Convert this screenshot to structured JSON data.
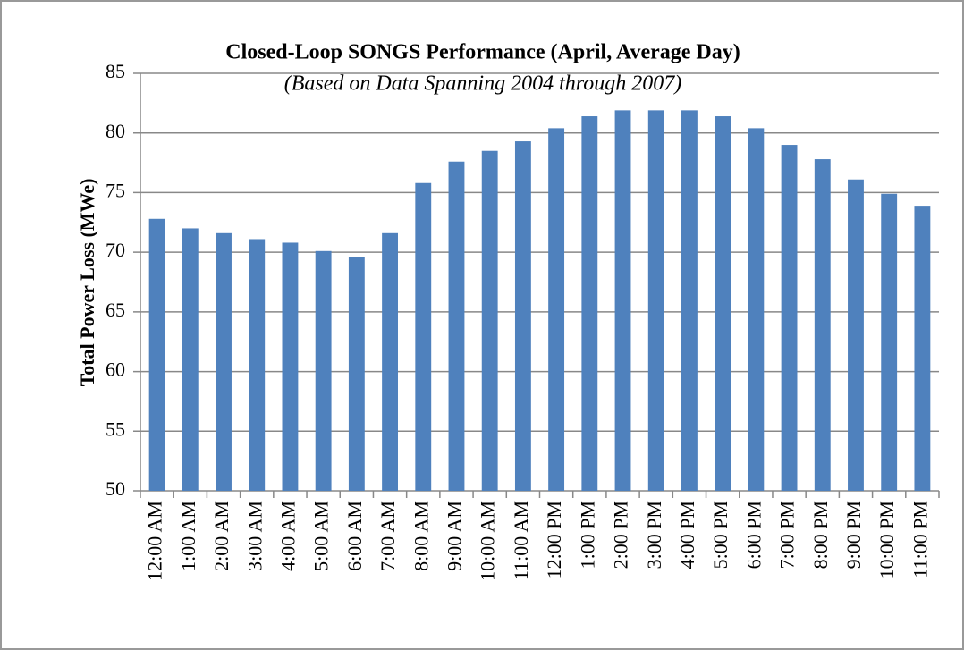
{
  "chart_data": {
    "type": "bar",
    "title": "Closed-Loop SONGS Performance  (April, Average Day)",
    "subtitle": "(Based on Data Spanning 2004 through 2007)",
    "y_label": "Total Power Loss (MWe)",
    "categories": [
      "12:00 AM",
      "1:00 AM",
      "2:00 AM",
      "3:00 AM",
      "4:00 AM",
      "5:00 AM",
      "6:00 AM",
      "7:00 AM",
      "8:00 AM",
      "9:00 AM",
      "10:00 AM",
      "11:00 AM",
      "12:00 PM",
      "1:00 PM",
      "2:00 PM",
      "3:00 PM",
      "4:00 PM",
      "5:00 PM",
      "6:00 PM",
      "7:00 PM",
      "8:00 PM",
      "9:00 PM",
      "10:00 PM",
      "11:00 PM"
    ],
    "values": [
      72.8,
      72.0,
      71.6,
      71.1,
      70.8,
      70.1,
      69.6,
      71.6,
      75.8,
      77.6,
      78.5,
      79.3,
      80.4,
      81.4,
      81.9,
      81.9,
      81.9,
      81.4,
      80.4,
      79.0,
      77.8,
      76.1,
      74.9,
      73.9
    ],
    "color": "#4f81bd",
    "ylim": [
      50,
      85
    ],
    "yticks": [
      50,
      55,
      60,
      65,
      70,
      75,
      80,
      85
    ],
    "grid": true
  }
}
